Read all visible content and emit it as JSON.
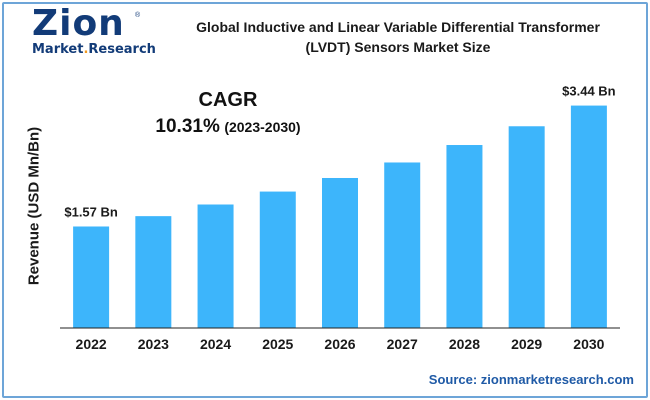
{
  "logo": {
    "word": "Zion",
    "registered": "®",
    "sub_market": "Market",
    "sub_dot": ".",
    "sub_research": "Research"
  },
  "title_line1": "Global Inductive and Linear Variable Differential Transformer",
  "title_line2": "(LVDT) Sensors Market Size",
  "cagr": {
    "label": "CAGR",
    "value": "10.31%",
    "period": "(2023-2030)"
  },
  "source": "Source: zionmarketresearch.com",
  "colors": {
    "bar": "#3db5fb",
    "border": "#6da5d8",
    "logo": "#123b78",
    "source": "#1f5aa6",
    "accent": "#f29a1f"
  },
  "chart_data": {
    "type": "bar",
    "categories": [
      "2022",
      "2023",
      "2024",
      "2025",
      "2026",
      "2027",
      "2028",
      "2029",
      "2030"
    ],
    "values": [
      1.57,
      1.73,
      1.91,
      2.11,
      2.32,
      2.56,
      2.83,
      3.12,
      3.44
    ],
    "unit": "Bn",
    "ylabel": "Revenue (USD Mn/Bn)",
    "xlabel": "",
    "ylim": [
      0,
      3.65
    ],
    "grid": false,
    "y_ticks_shown": false,
    "data_labels": [
      {
        "category": "2022",
        "text": "$1.57 Bn"
      },
      {
        "category": "2030",
        "text": "$3.44 Bn"
      }
    ]
  }
}
